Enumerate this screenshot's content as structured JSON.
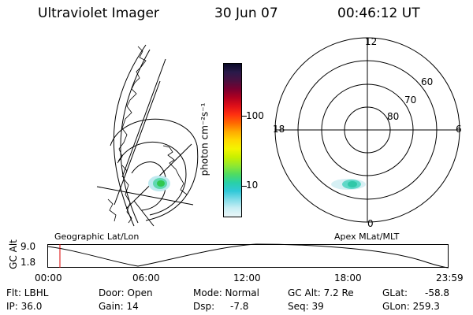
{
  "header": {
    "title": "Ultraviolet Imager",
    "date": "30 Jun 07",
    "time": "00:46:12 UT"
  },
  "colorbar": {
    "unit": "photon cm⁻²s⁻¹",
    "ticks": [
      "100",
      "10"
    ],
    "colors": [
      "#0a0a28",
      "#2a1a4a",
      "#4a1040",
      "#7a0030",
      "#b00020",
      "#e01018",
      "#ff3010",
      "#ff6a00",
      "#ffaa00",
      "#ffd800",
      "#f4f400",
      "#c8f000",
      "#90e830",
      "#50dc60",
      "#28d0a8",
      "#30c8d8",
      "#80dce8",
      "#c8eef4",
      "#eaf6f8"
    ]
  },
  "panels": {
    "geo_label": "Geographic Lat/Lon",
    "apex_label": "Apex MLat/MLT"
  },
  "polar": {
    "mlt_top": "12",
    "mlt_left": "18",
    "mlt_right": "6",
    "mlt_bottom": "0",
    "lat_labels": [
      "60",
      "70",
      "80"
    ]
  },
  "altplot": {
    "ylabel": "GC Alt",
    "y_ticks": [
      "9.0",
      "1.8"
    ],
    "x_ticks": [
      "00:00",
      "06:00",
      "12:00",
      "18:00",
      "23:59"
    ],
    "marker_color": "#dd0000"
  },
  "status": {
    "flt": "Flt: LBHL",
    "ip": "IP: 36.0",
    "door": "Door: Open",
    "gain": "Gain: 14",
    "mode": "Mode: Normal",
    "dsp_label": "Dsp:",
    "dsp_value": "-7.8",
    "gcalt": "GC Alt: 7.2 Re",
    "seq": "Seq: 39",
    "glat_label": "GLat:",
    "glat_value": "-58.8",
    "glon": "GLon: 259.3"
  }
}
